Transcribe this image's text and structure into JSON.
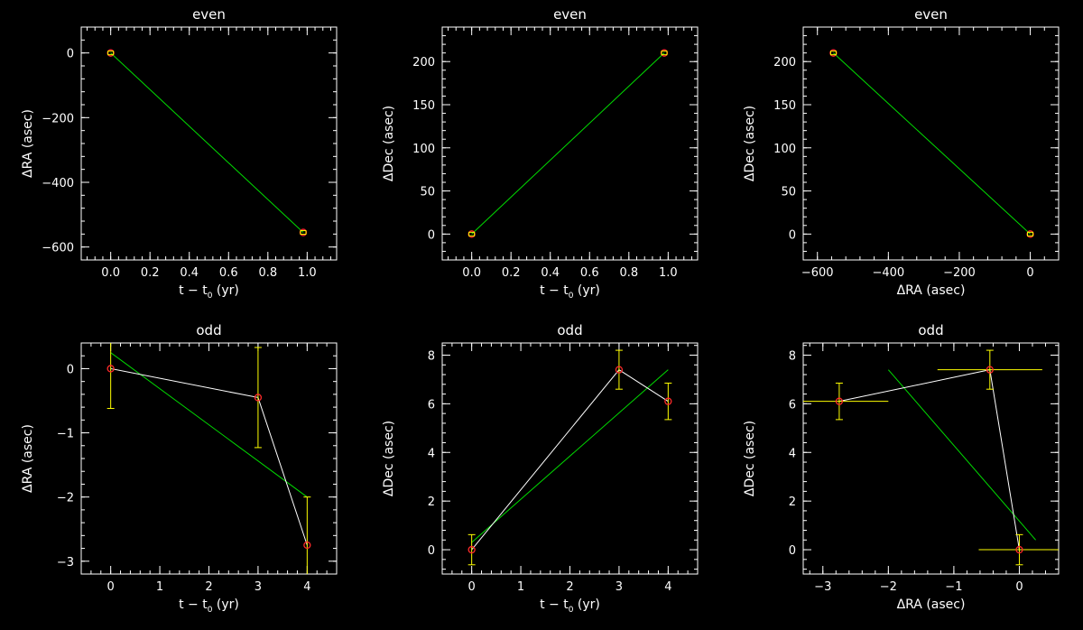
{
  "chart_data": [
    {
      "type": "scatter",
      "title": "even",
      "xlabel": "t − t",
      "xlabel_sub": "0",
      "xlabel_unit": " (yr)",
      "ylabel": "ΔRA (asec)",
      "xlim": [
        -0.15,
        1.15
      ],
      "ylim": [
        -640,
        80
      ],
      "xticks": [
        0.0,
        0.2,
        0.4,
        0.6,
        0.8,
        1.0
      ],
      "xticklabels": [
        "0.0",
        "0.2",
        "0.4",
        "0.6",
        "0.8",
        "1.0"
      ],
      "yticks": [
        0,
        -200,
        -400,
        -600
      ],
      "yticklabels": [
        "0",
        "−200",
        "−400",
        "−600"
      ],
      "points": [
        {
          "x": 0.0,
          "y": 0,
          "xerr": 0,
          "yerr": 0
        },
        {
          "x": 0.98,
          "y": -555,
          "xerr": 0,
          "yerr": 0
        }
      ],
      "connect_points": false,
      "fit_line": [
        [
          0.0,
          0
        ],
        [
          0.98,
          -555
        ]
      ]
    },
    {
      "type": "scatter",
      "title": "even",
      "xlabel": "t − t",
      "xlabel_sub": "0",
      "xlabel_unit": " (yr)",
      "ylabel": "ΔDec (asec)",
      "xlim": [
        -0.15,
        1.15
      ],
      "ylim": [
        -30,
        240
      ],
      "xticks": [
        0.0,
        0.2,
        0.4,
        0.6,
        0.8,
        1.0
      ],
      "xticklabels": [
        "0.0",
        "0.2",
        "0.4",
        "0.6",
        "0.8",
        "1.0"
      ],
      "yticks": [
        0,
        50,
        100,
        150,
        200
      ],
      "yticklabels": [
        "0",
        "50",
        "100",
        "150",
        "200"
      ],
      "points": [
        {
          "x": 0.0,
          "y": 0,
          "xerr": 0,
          "yerr": 0
        },
        {
          "x": 0.98,
          "y": 210,
          "xerr": 0,
          "yerr": 0
        }
      ],
      "connect_points": false,
      "fit_line": [
        [
          0.0,
          0
        ],
        [
          0.98,
          210
        ]
      ]
    },
    {
      "type": "scatter",
      "title": "even",
      "xlabel": "ΔRA (asec)",
      "ylabel": "ΔDec (asec)",
      "xlim": [
        -640,
        80
      ],
      "ylim": [
        -30,
        240
      ],
      "xticks": [
        -600,
        -400,
        -200,
        0
      ],
      "xticklabels": [
        "−600",
        "−400",
        "−200",
        "0"
      ],
      "yticks": [
        0,
        50,
        100,
        150,
        200
      ],
      "yticklabels": [
        "0",
        "50",
        "100",
        "150",
        "200"
      ],
      "points": [
        {
          "x": -555,
          "y": 210,
          "xerr": 0,
          "yerr": 0
        },
        {
          "x": 0,
          "y": 0,
          "xerr": 0,
          "yerr": 0
        }
      ],
      "connect_points": false,
      "fit_line": [
        [
          -555,
          210
        ],
        [
          0,
          0
        ]
      ]
    },
    {
      "type": "scatter",
      "title": "odd",
      "xlabel": "t − t",
      "xlabel_sub": "0",
      "xlabel_unit": " (yr)",
      "ylabel": "ΔRA (asec)",
      "xlim": [
        -0.6,
        4.6
      ],
      "ylim": [
        -3.2,
        0.4
      ],
      "xticks": [
        0,
        1,
        2,
        3,
        4
      ],
      "xticklabels": [
        "0",
        "1",
        "2",
        "3",
        "4"
      ],
      "yticks": [
        0,
        -1,
        -2,
        -3
      ],
      "yticklabels": [
        "0",
        "−1",
        "−2",
        "−3"
      ],
      "points": [
        {
          "x": 0,
          "y": 0.0,
          "xerr": 0,
          "yerr": 0.62
        },
        {
          "x": 3,
          "y": -0.45,
          "xerr": 0,
          "yerr": 0.78
        },
        {
          "x": 4,
          "y": -2.75,
          "xerr": 0,
          "yerr": 0.75
        }
      ],
      "connect_points": true,
      "fit_line": [
        [
          0,
          0.25
        ],
        [
          4,
          -2.0
        ]
      ]
    },
    {
      "type": "scatter",
      "title": "odd",
      "xlabel": "t − t",
      "xlabel_sub": "0",
      "xlabel_unit": " (yr)",
      "ylabel": "ΔDec (asec)",
      "xlim": [
        -0.6,
        4.6
      ],
      "ylim": [
        -1.0,
        8.5
      ],
      "xticks": [
        0,
        1,
        2,
        3,
        4
      ],
      "xticklabels": [
        "0",
        "1",
        "2",
        "3",
        "4"
      ],
      "yticks": [
        0,
        2,
        4,
        6,
        8
      ],
      "yticklabels": [
        "0",
        "2",
        "4",
        "6",
        "8"
      ],
      "points": [
        {
          "x": 0,
          "y": 0.0,
          "xerr": 0,
          "yerr": 0.62
        },
        {
          "x": 3,
          "y": 7.4,
          "xerr": 0,
          "yerr": 0.8
        },
        {
          "x": 4,
          "y": 6.1,
          "xerr": 0,
          "yerr": 0.75
        }
      ],
      "connect_points": true,
      "fit_line": [
        [
          0,
          0.3
        ],
        [
          4,
          7.4
        ]
      ]
    },
    {
      "type": "scatter",
      "title": "odd",
      "xlabel": "ΔRA (asec)",
      "ylabel": "ΔDec (asec)",
      "xlim": [
        -3.3,
        0.6
      ],
      "ylim": [
        -1.0,
        8.5
      ],
      "xticks": [
        -3,
        -2,
        -1,
        0
      ],
      "xticklabels": [
        "−3",
        "−2",
        "−1",
        "0"
      ],
      "yticks": [
        0,
        2,
        4,
        6,
        8
      ],
      "yticklabels": [
        "0",
        "2",
        "4",
        "6",
        "8"
      ],
      "points": [
        {
          "x": -2.75,
          "y": 6.1,
          "xerr": 0.75,
          "yerr": 0.75
        },
        {
          "x": -0.45,
          "y": 7.4,
          "xerr": 0.8,
          "yerr": 0.8
        },
        {
          "x": 0.0,
          "y": 0.0,
          "xerr": 0.62,
          "yerr": 0.62
        }
      ],
      "connect_points": true,
      "fit_line": [
        [
          -2.0,
          7.4
        ],
        [
          0.25,
          0.4
        ]
      ]
    }
  ],
  "colors": {
    "background": "#000000",
    "axes": "#ffffff",
    "point": "#ff2a2a",
    "errorbar": "#ffff00",
    "fit_line": "#00dd00",
    "connect_line": "#ffffff"
  }
}
